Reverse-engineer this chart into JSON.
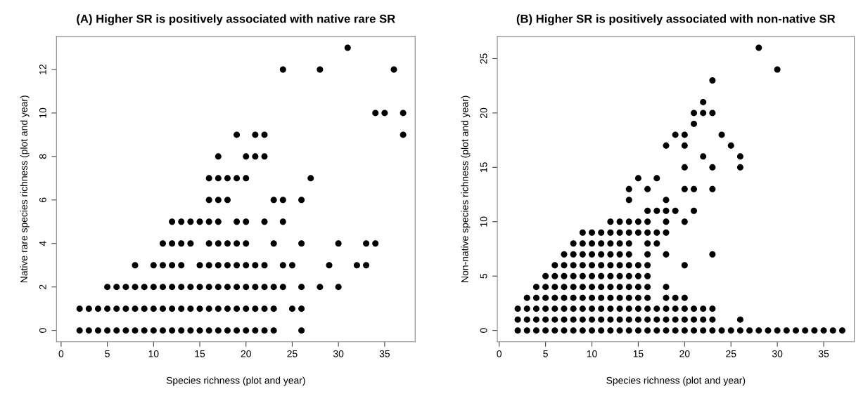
{
  "chart_data": [
    {
      "type": "scatter",
      "title": "(A) Higher SR is positively associated with native rare SR",
      "xlabel": "Species richness (plot and year)",
      "ylabel": "Native rare species richness (plot and year)",
      "xlim": [
        -0.5,
        38.3
      ],
      "ylim": [
        -0.52,
        13.52
      ],
      "xticks": [
        0,
        5,
        10,
        15,
        20,
        25,
        30,
        35
      ],
      "yticks": [
        0,
        2,
        4,
        6,
        8,
        10,
        12
      ],
      "marker": "circle",
      "grid": false,
      "series": [
        {
          "color": "#000000",
          "x": [
            2,
            3,
            4,
            5,
            6,
            7,
            8,
            9,
            10,
            11,
            12,
            13,
            14,
            15,
            16,
            17,
            18,
            19,
            20,
            21,
            22,
            23,
            26,
            2,
            3,
            4,
            5,
            6,
            7,
            8,
            9,
            10,
            11,
            12,
            13,
            14,
            15,
            16,
            17,
            18,
            19,
            20,
            21,
            22,
            23,
            25,
            26,
            5,
            6,
            7,
            8,
            9,
            10,
            11,
            12,
            13,
            14,
            15,
            16,
            17,
            18,
            19,
            20,
            21,
            22,
            23,
            24,
            26,
            28,
            30,
            8,
            10,
            11,
            12,
            13,
            15,
            16,
            17,
            18,
            19,
            20,
            21,
            22,
            24,
            25,
            29,
            32,
            33,
            11,
            12,
            13,
            14,
            16,
            17,
            18,
            19,
            20,
            23,
            26,
            30,
            33,
            34,
            12,
            13,
            14,
            15,
            16,
            17,
            19,
            20,
            22,
            24,
            16,
            17,
            18,
            23,
            24,
            26,
            16,
            17,
            18,
            19,
            20,
            27,
            17,
            20,
            21,
            22,
            19,
            21,
            22,
            37,
            34,
            35,
            37,
            24,
            28,
            36,
            31
          ],
          "values": [
            0,
            0,
            0,
            0,
            0,
            0,
            0,
            0,
            0,
            0,
            0,
            0,
            0,
            0,
            0,
            0,
            0,
            0,
            0,
            0,
            0,
            0,
            0,
            1,
            1,
            1,
            1,
            1,
            1,
            1,
            1,
            1,
            1,
            1,
            1,
            1,
            1,
            1,
            1,
            1,
            1,
            1,
            1,
            1,
            1,
            1,
            1,
            2,
            2,
            2,
            2,
            2,
            2,
            2,
            2,
            2,
            2,
            2,
            2,
            2,
            2,
            2,
            2,
            2,
            2,
            2,
            2,
            2,
            2,
            2,
            3,
            3,
            3,
            3,
            3,
            3,
            3,
            3,
            3,
            3,
            3,
            3,
            3,
            3,
            3,
            3,
            3,
            3,
            4,
            4,
            4,
            4,
            4,
            4,
            4,
            4,
            4,
            4,
            4,
            4,
            4,
            4,
            5,
            5,
            5,
            5,
            5,
            5,
            5,
            5,
            5,
            5,
            6,
            6,
            6,
            6,
            6,
            6,
            7,
            7,
            7,
            7,
            7,
            7,
            8,
            8,
            8,
            8,
            9,
            9,
            9,
            9,
            10,
            10,
            10,
            12,
            12,
            12,
            13
          ]
        }
      ]
    },
    {
      "type": "scatter",
      "title": "(B) Higher SR is positively associated with non-native SR",
      "xlabel": "Species richness (plot and year)",
      "ylabel": "Non-native species richness (plot and year)",
      "xlim": [
        -0.2,
        38.3
      ],
      "ylim": [
        -1.04,
        27.04
      ],
      "xticks": [
        0,
        5,
        10,
        15,
        20,
        25,
        30,
        35
      ],
      "yticks": [
        0,
        5,
        10,
        15,
        20,
        25
      ],
      "marker": "circle",
      "grid": false,
      "series": [
        {
          "color": "#000000",
          "x": [
            2,
            3,
            4,
            5,
            6,
            7,
            8,
            9,
            10,
            11,
            12,
            13,
            14,
            15,
            16,
            17,
            18,
            19,
            20,
            21,
            22,
            23,
            24,
            25,
            26,
            27,
            28,
            29,
            30,
            31,
            32,
            33,
            34,
            35,
            36,
            37,
            2,
            3,
            4,
            5,
            6,
            7,
            8,
            9,
            10,
            11,
            12,
            13,
            14,
            15,
            16,
            17,
            18,
            19,
            20,
            21,
            22,
            23,
            26,
            2,
            3,
            4,
            5,
            6,
            7,
            8,
            9,
            10,
            11,
            12,
            13,
            14,
            15,
            16,
            17,
            18,
            19,
            20,
            21,
            22,
            23,
            3,
            4,
            5,
            6,
            7,
            8,
            9,
            10,
            11,
            12,
            13,
            14,
            15,
            16,
            18,
            19,
            20,
            4,
            5,
            6,
            7,
            8,
            9,
            10,
            11,
            12,
            13,
            14,
            15,
            16,
            18,
            5,
            6,
            7,
            8,
            9,
            10,
            11,
            12,
            13,
            14,
            15,
            16,
            6,
            7,
            8,
            9,
            10,
            11,
            12,
            13,
            14,
            15,
            16,
            20,
            7,
            8,
            9,
            10,
            11,
            12,
            13,
            14,
            16,
            18,
            23,
            8,
            9,
            10,
            11,
            12,
            13,
            14,
            16,
            17,
            9,
            10,
            11,
            12,
            13,
            14,
            15,
            16,
            17,
            18,
            12,
            13,
            14,
            15,
            16,
            18,
            20,
            16,
            17,
            18,
            19,
            21,
            14,
            18,
            14,
            16,
            20,
            21,
            23,
            15,
            17,
            20,
            23,
            26,
            22,
            26,
            18,
            20,
            25,
            19,
            20,
            24,
            21,
            21,
            22,
            23,
            22,
            23,
            30,
            28
          ],
          "values": [
            0,
            0,
            0,
            0,
            0,
            0,
            0,
            0,
            0,
            0,
            0,
            0,
            0,
            0,
            0,
            0,
            0,
            0,
            0,
            0,
            0,
            0,
            0,
            0,
            0,
            0,
            0,
            0,
            0,
            0,
            0,
            0,
            0,
            0,
            0,
            0,
            1,
            1,
            1,
            1,
            1,
            1,
            1,
            1,
            1,
            1,
            1,
            1,
            1,
            1,
            1,
            1,
            1,
            1,
            1,
            1,
            1,
            1,
            1,
            2,
            2,
            2,
            2,
            2,
            2,
            2,
            2,
            2,
            2,
            2,
            2,
            2,
            2,
            2,
            2,
            2,
            2,
            2,
            2,
            2,
            2,
            3,
            3,
            3,
            3,
            3,
            3,
            3,
            3,
            3,
            3,
            3,
            3,
            3,
            3,
            3,
            3,
            3,
            4,
            4,
            4,
            4,
            4,
            4,
            4,
            4,
            4,
            4,
            4,
            4,
            4,
            4,
            5,
            5,
            5,
            5,
            5,
            5,
            5,
            5,
            5,
            5,
            5,
            5,
            6,
            6,
            6,
            6,
            6,
            6,
            6,
            6,
            6,
            6,
            6,
            6,
            7,
            7,
            7,
            7,
            7,
            7,
            7,
            7,
            7,
            7,
            7,
            8,
            8,
            8,
            8,
            8,
            8,
            8,
            8,
            8,
            9,
            9,
            9,
            9,
            9,
            9,
            9,
            9,
            9,
            9,
            10,
            10,
            10,
            10,
            10,
            10,
            10,
            11,
            11,
            11,
            11,
            11,
            12,
            12,
            13,
            13,
            13,
            13,
            13,
            14,
            14,
            15,
            15,
            15,
            16,
            16,
            17,
            17,
            17,
            18,
            18,
            18,
            19,
            20,
            20,
            20,
            21,
            23,
            24,
            26
          ]
        }
      ]
    }
  ]
}
